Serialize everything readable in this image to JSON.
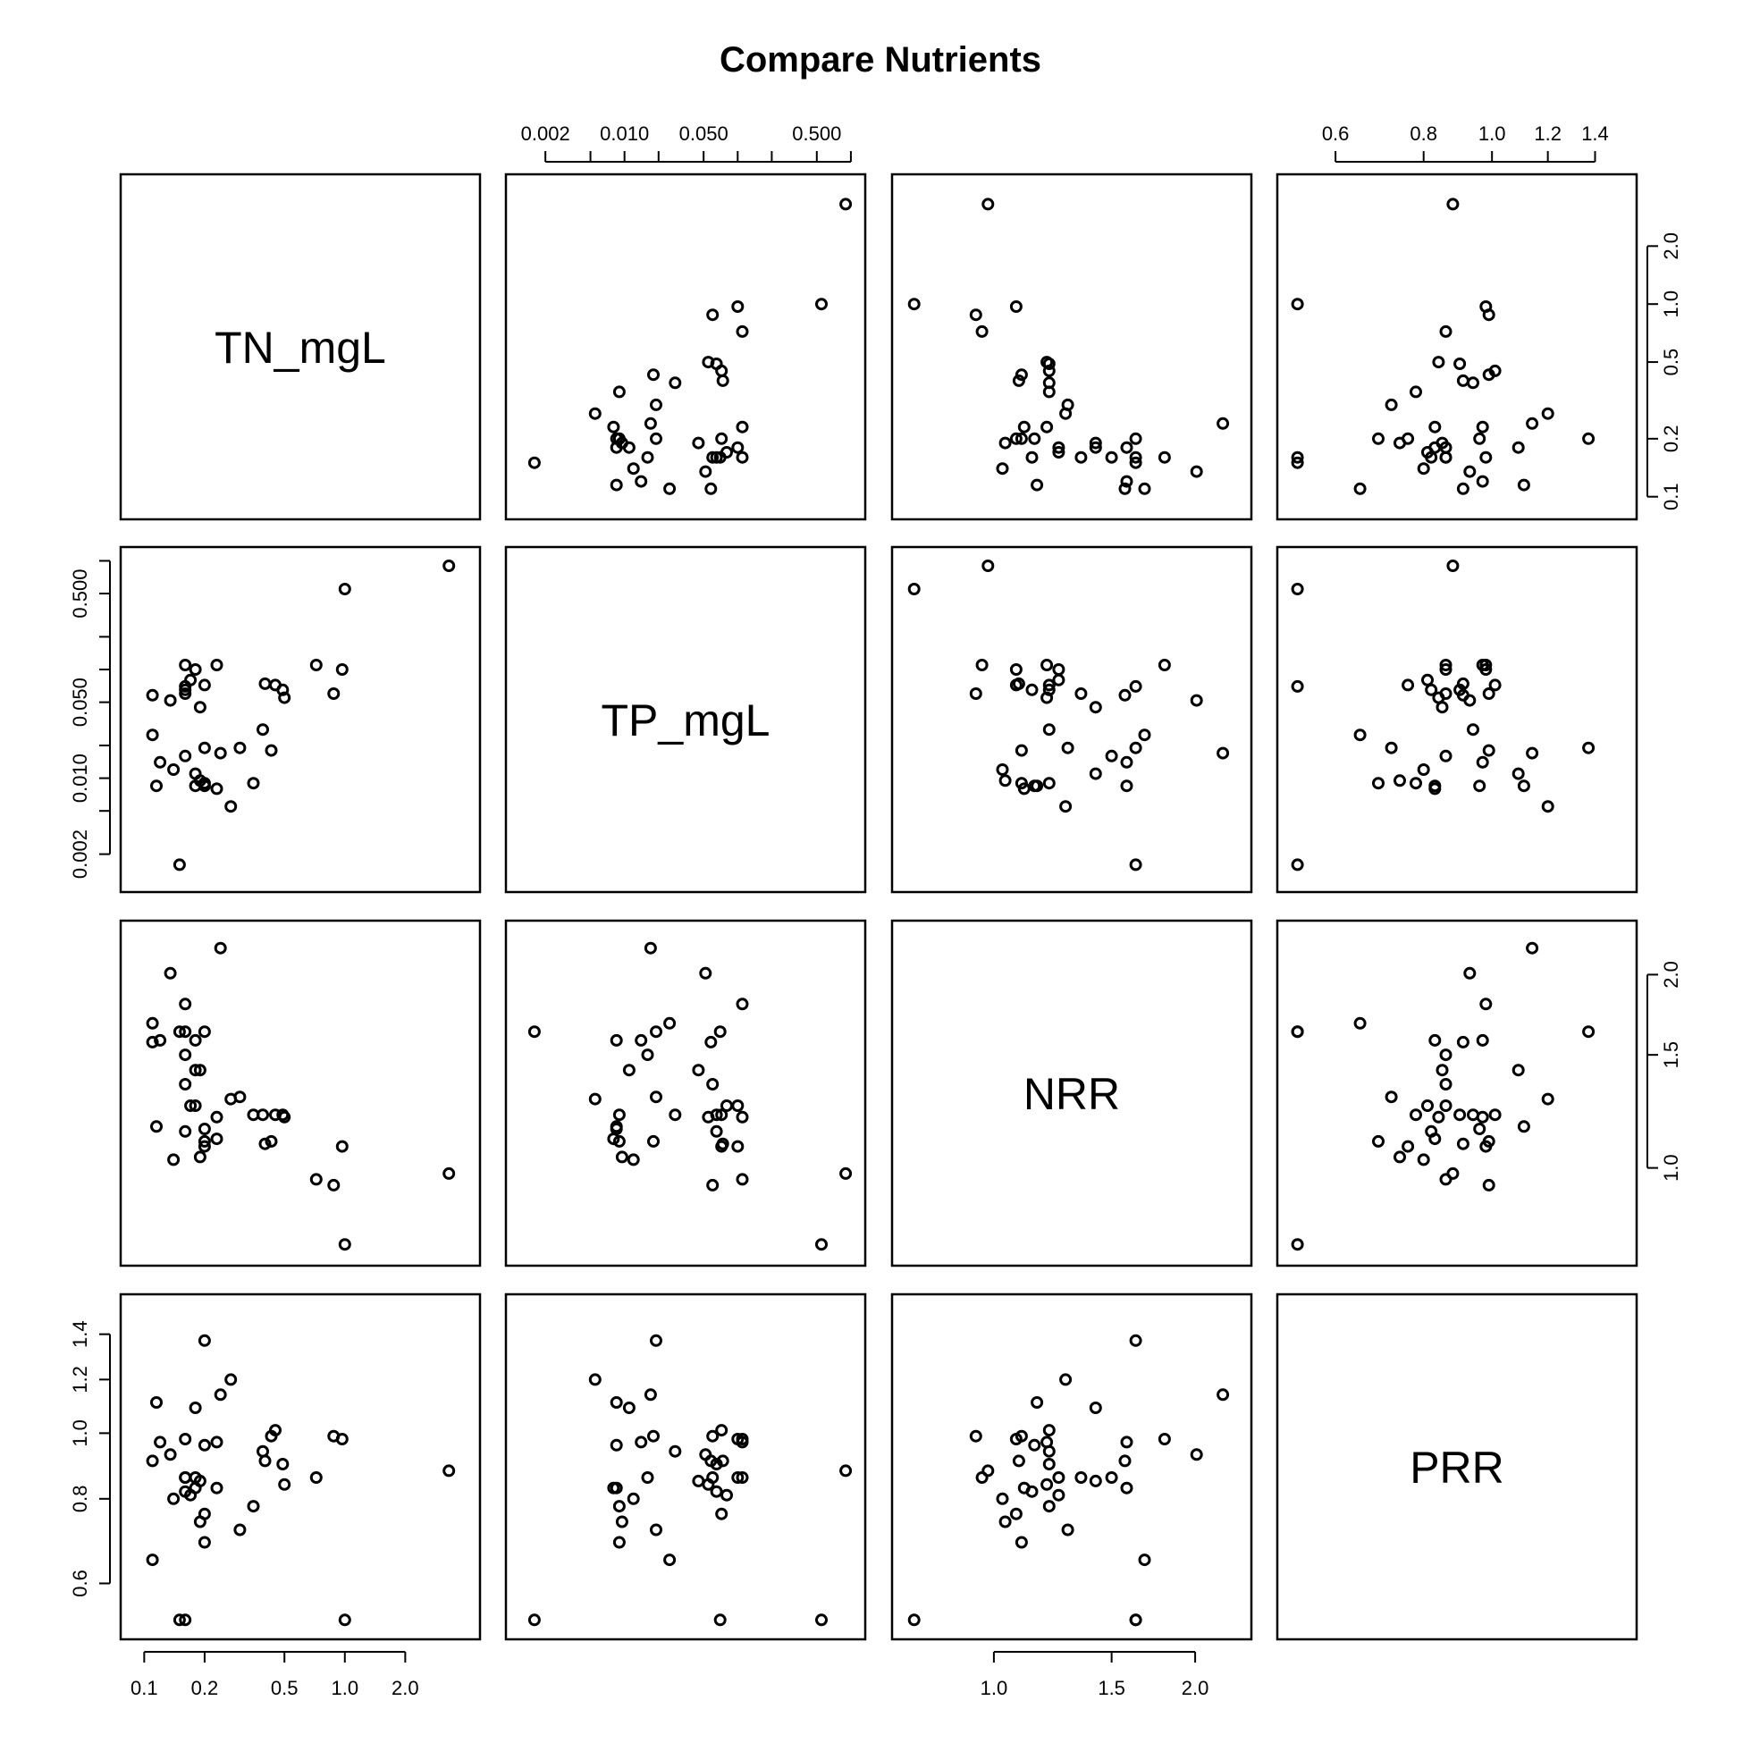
{
  "chart_data": {
    "type": "scatter",
    "title": "Compare Nutrients",
    "variables": [
      {
        "name": "TN_mgL",
        "scale": "log",
        "range": [
          0.09,
          4.0
        ],
        "ticks": [
          {
            "value": 0.1,
            "label": "0.1"
          },
          {
            "value": 0.2,
            "label": "0.2"
          },
          {
            "value": 0.5,
            "label": "0.5"
          },
          {
            "value": 1.0,
            "label": "1.0"
          },
          {
            "value": 2.0,
            "label": "2.0"
          }
        ]
      },
      {
        "name": "TP_mgL",
        "scale": "log",
        "range": [
          0.0012,
          1.0
        ],
        "ticks": [
          {
            "value": 0.002,
            "label": "0.002"
          },
          {
            "value": 0.005,
            "label": ""
          },
          {
            "value": 0.01,
            "label": "0.010"
          },
          {
            "value": 0.02,
            "label": ""
          },
          {
            "value": 0.05,
            "label": "0.050"
          },
          {
            "value": 0.1,
            "label": ""
          },
          {
            "value": 0.2,
            "label": ""
          },
          {
            "value": 0.5,
            "label": "0.500"
          },
          {
            "value": 1.0,
            "label": ""
          }
        ]
      },
      {
        "name": "NRR",
        "scale": "log",
        "range": [
          0.74,
          2.31
        ],
        "ticks": [
          {
            "value": 1.0,
            "label": "1.0"
          },
          {
            "value": 1.5,
            "label": "1.5"
          },
          {
            "value": 2.0,
            "label": "2.0"
          }
        ]
      },
      {
        "name": "PRR",
        "scale": "log",
        "range": [
          0.52,
          1.53
        ],
        "ticks": [
          {
            "value": 0.6,
            "label": "0.6"
          },
          {
            "value": 0.8,
            "label": "0.8"
          },
          {
            "value": 1.0,
            "label": "1.0"
          },
          {
            "value": 1.2,
            "label": "1.2"
          },
          {
            "value": 1.4,
            "label": "1.4"
          }
        ]
      }
    ],
    "tick_label_positions": {
      "0": "bottom",
      "1": "top",
      "2": "bottom",
      "3": "top"
    },
    "row_tick_label_positions": {
      "0": "right",
      "1": "left",
      "2": "right",
      "3": "left"
    },
    "observations": [
      {
        "TN_mgL": 3.3,
        "TP_mgL": 0.9,
        "NRR": 0.98,
        "PRR": 0.88
      },
      {
        "TN_mgL": 1.0,
        "TP_mgL": 0.55,
        "NRR": 0.76,
        "PRR": 0.53
      },
      {
        "TN_mgL": 0.97,
        "TP_mgL": 0.1,
        "NRR": 1.08,
        "PRR": 0.98
      },
      {
        "TN_mgL": 0.88,
        "TP_mgL": 0.06,
        "NRR": 0.94,
        "PRR": 0.99
      },
      {
        "TN_mgL": 0.72,
        "TP_mgL": 0.11,
        "NRR": 0.96,
        "PRR": 0.86
      },
      {
        "TN_mgL": 0.5,
        "TP_mgL": 0.055,
        "NRR": 1.2,
        "PRR": 0.84
      },
      {
        "TN_mgL": 0.49,
        "TP_mgL": 0.065,
        "NRR": 1.21,
        "PRR": 0.9
      },
      {
        "TN_mgL": 0.45,
        "TP_mgL": 0.072,
        "NRR": 1.21,
        "PRR": 1.01
      },
      {
        "TN_mgL": 0.43,
        "TP_mgL": 0.018,
        "NRR": 1.1,
        "PRR": 0.99
      },
      {
        "TN_mgL": 0.4,
        "TP_mgL": 0.074,
        "NRR": 1.09,
        "PRR": 0.91
      },
      {
        "TN_mgL": 0.39,
        "TP_mgL": 0.028,
        "NRR": 1.21,
        "PRR": 0.94
      },
      {
        "TN_mgL": 0.35,
        "TP_mgL": 0.009,
        "NRR": 1.21,
        "PRR": 0.78
      },
      {
        "TN_mgL": 0.3,
        "TP_mgL": 0.019,
        "NRR": 1.29,
        "PRR": 0.72
      },
      {
        "TN_mgL": 0.27,
        "TP_mgL": 0.0055,
        "NRR": 1.28,
        "PRR": 1.2
      },
      {
        "TN_mgL": 0.24,
        "TP_mgL": 0.017,
        "NRR": 2.2,
        "PRR": 1.14
      },
      {
        "TN_mgL": 0.23,
        "TP_mgL": 0.11,
        "NRR": 1.2,
        "PRR": 0.97
      },
      {
        "TN_mgL": 0.23,
        "TP_mgL": 0.008,
        "NRR": 1.11,
        "PRR": 0.83
      },
      {
        "TN_mgL": 0.2,
        "TP_mgL": 0.019,
        "NRR": 1.63,
        "PRR": 1.37
      },
      {
        "TN_mgL": 0.2,
        "TP_mgL": 0.009,
        "NRR": 1.1,
        "PRR": 0.69
      },
      {
        "TN_mgL": 0.2,
        "TP_mgL": 0.072,
        "NRR": 1.08,
        "PRR": 0.76
      },
      {
        "TN_mgL": 0.2,
        "TP_mgL": 0.0085,
        "NRR": 1.15,
        "PRR": 0.96
      },
      {
        "TN_mgL": 0.19,
        "TP_mgL": 0.0095,
        "NRR": 1.04,
        "PRR": 0.74
      },
      {
        "TN_mgL": 0.19,
        "TP_mgL": 0.045,
        "NRR": 1.42,
        "PRR": 0.85
      },
      {
        "TN_mgL": 0.18,
        "TP_mgL": 0.1,
        "NRR": 1.25,
        "PRR": 0.86
      },
      {
        "TN_mgL": 0.18,
        "TP_mgL": 0.011,
        "NRR": 1.42,
        "PRR": 1.09
      },
      {
        "TN_mgL": 0.18,
        "TP_mgL": 0.0085,
        "NRR": 1.58,
        "PRR": 0.83
      },
      {
        "TN_mgL": 0.17,
        "TP_mgL": 0.08,
        "NRR": 1.25,
        "PRR": 0.81
      },
      {
        "TN_mgL": 0.16,
        "TP_mgL": 0.11,
        "NRR": 1.8,
        "PRR": 0.98
      },
      {
        "TN_mgL": 0.16,
        "TP_mgL": 0.016,
        "NRR": 1.5,
        "PRR": 0.86
      },
      {
        "TN_mgL": 0.16,
        "TP_mgL": 0.065,
        "NRR": 1.14,
        "PRR": 0.82
      },
      {
        "TN_mgL": 0.16,
        "TP_mgL": 0.07,
        "NRR": 1.63,
        "PRR": 0.53
      },
      {
        "TN_mgL": 0.16,
        "TP_mgL": 0.06,
        "NRR": 1.35,
        "PRR": 0.86
      },
      {
        "TN_mgL": 0.14,
        "TP_mgL": 0.012,
        "NRR": 1.03,
        "PRR": 0.8
      },
      {
        "TN_mgL": 0.135,
        "TP_mgL": 0.052,
        "NRR": 2.01,
        "PRR": 0.93
      },
      {
        "TN_mgL": 0.12,
        "TP_mgL": 0.014,
        "NRR": 1.58,
        "PRR": 0.97
      },
      {
        "TN_mgL": 0.115,
        "TP_mgL": 0.0085,
        "NRR": 1.16,
        "PRR": 1.11
      },
      {
        "TN_mgL": 0.11,
        "TP_mgL": 0.058,
        "NRR": 1.57,
        "PRR": 0.91
      },
      {
        "TN_mgL": 0.11,
        "TP_mgL": 0.025,
        "NRR": 1.68,
        "PRR": 0.65
      },
      {
        "TN_mgL": 0.15,
        "TP_mgL": 0.0016,
        "NRR": 1.63,
        "PRR": 0.53
      }
    ]
  }
}
